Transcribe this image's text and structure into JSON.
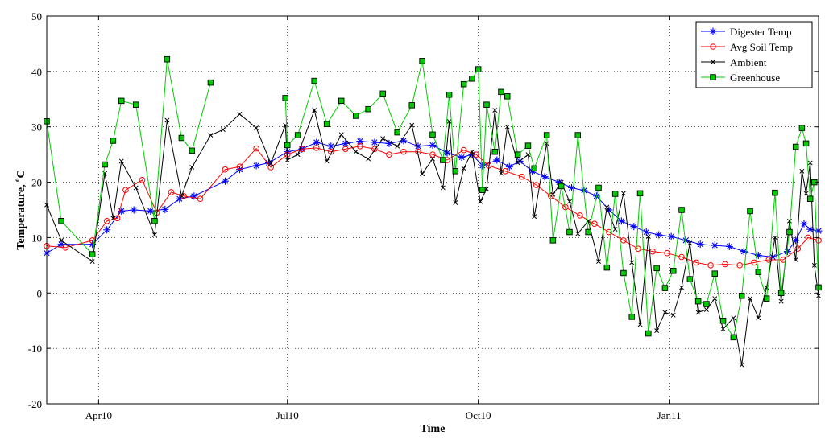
{
  "chart_data": {
    "type": "line",
    "xlabel": "Time",
    "ylabel": "Temperature, °C",
    "ylabel_text": "Temperature, ",
    "ylabel_sup": "o",
    "ylabel_unit": "C",
    "xlim": [
      "2010-03-07",
      "2011-03-14"
    ],
    "ylim": [
      -20,
      50
    ],
    "grid": true,
    "legend_position": "top-right",
    "x_ticks": [
      {
        "date": "2010-04-01",
        "label": "Apr10"
      },
      {
        "date": "2010-07-01",
        "label": "Jul10"
      },
      {
        "date": "2010-10-01",
        "label": "Oct10"
      },
      {
        "date": "2011-01-01",
        "label": "Jan11"
      }
    ],
    "y_ticks": [
      -20,
      -10,
      0,
      10,
      20,
      30,
      40,
      50
    ],
    "series": [
      {
        "name": "Digester Temp",
        "color": "#0000ff",
        "marker": "star",
        "points": [
          [
            "2010-03-07",
            7.2
          ],
          [
            "2010-03-14",
            8.8
          ],
          [
            "2010-03-29",
            8.8
          ],
          [
            "2010-04-05",
            11.4
          ],
          [
            "2010-04-12",
            14.8
          ],
          [
            "2010-04-18",
            15.0
          ],
          [
            "2010-04-26",
            14.8
          ],
          [
            "2010-05-03",
            15.1
          ],
          [
            "2010-05-10",
            17.0
          ],
          [
            "2010-05-17",
            17.5
          ],
          [
            "2010-06-01",
            20.2
          ],
          [
            "2010-06-08",
            22.3
          ],
          [
            "2010-06-16",
            23.0
          ],
          [
            "2010-06-22",
            23.5
          ],
          [
            "2010-07-01",
            25.5
          ],
          [
            "2010-07-08",
            26.0
          ],
          [
            "2010-07-15",
            27.2
          ],
          [
            "2010-07-22",
            26.5
          ],
          [
            "2010-07-29",
            27.0
          ],
          [
            "2010-08-05",
            27.4
          ],
          [
            "2010-08-12",
            27.2
          ],
          [
            "2010-08-19",
            27.0
          ],
          [
            "2010-08-26",
            27.5
          ],
          [
            "2010-09-02",
            26.5
          ],
          [
            "2010-09-09",
            26.7
          ],
          [
            "2010-09-16",
            25.3
          ],
          [
            "2010-09-23",
            24.5
          ],
          [
            "2010-09-28",
            25.0
          ],
          [
            "2010-10-03",
            23.0
          ],
          [
            "2010-10-10",
            24.0
          ],
          [
            "2010-10-16",
            22.8
          ],
          [
            "2010-10-21",
            23.8
          ],
          [
            "2010-10-27",
            22.0
          ],
          [
            "2010-11-02",
            21.0
          ],
          [
            "2010-11-09",
            20.0
          ],
          [
            "2010-11-15",
            19.0
          ],
          [
            "2010-11-21",
            18.5
          ],
          [
            "2010-11-27",
            17.5
          ],
          [
            "2010-12-03",
            15.0
          ],
          [
            "2010-12-09",
            13.0
          ],
          [
            "2010-12-15",
            12.0
          ],
          [
            "2010-12-21",
            11.0
          ],
          [
            "2010-12-27",
            10.5
          ],
          [
            "2011-01-02",
            10.2
          ],
          [
            "2011-01-09",
            9.5
          ],
          [
            "2011-01-16",
            8.8
          ],
          [
            "2011-01-23",
            8.6
          ],
          [
            "2011-01-30",
            8.4
          ],
          [
            "2011-02-06",
            7.5
          ],
          [
            "2011-02-13",
            6.8
          ],
          [
            "2011-02-20",
            6.5
          ],
          [
            "2011-02-27",
            7.5
          ],
          [
            "2011-03-03",
            9.5
          ],
          [
            "2011-03-07",
            12.5
          ],
          [
            "2011-03-10",
            11.5
          ],
          [
            "2011-03-14",
            11.2
          ]
        ]
      },
      {
        "name": "Avg Soil Temp",
        "color": "#ff0000",
        "marker": "circle",
        "points": [
          [
            "2010-03-07",
            8.5
          ],
          [
            "2010-03-16",
            8.2
          ],
          [
            "2010-03-29",
            9.5
          ],
          [
            "2010-04-05",
            13.0
          ],
          [
            "2010-04-10",
            13.5
          ],
          [
            "2010-04-14",
            18.6
          ],
          [
            "2010-04-22",
            20.4
          ],
          [
            "2010-04-29",
            14.5
          ],
          [
            "2010-05-06",
            18.2
          ],
          [
            "2010-05-12",
            17.5
          ],
          [
            "2010-05-20",
            17.0
          ],
          [
            "2010-06-01",
            22.3
          ],
          [
            "2010-06-08",
            22.8
          ],
          [
            "2010-06-16",
            26.1
          ],
          [
            "2010-06-23",
            22.7
          ],
          [
            "2010-07-01",
            25.0
          ],
          [
            "2010-07-08",
            26.0
          ],
          [
            "2010-07-15",
            26.2
          ],
          [
            "2010-07-22",
            25.5
          ],
          [
            "2010-07-29",
            26.0
          ],
          [
            "2010-08-05",
            26.5
          ],
          [
            "2010-08-12",
            26.0
          ],
          [
            "2010-08-19",
            25.0
          ],
          [
            "2010-08-26",
            25.5
          ],
          [
            "2010-09-02",
            25.5
          ],
          [
            "2010-09-09",
            25.0
          ],
          [
            "2010-09-16",
            24.0
          ],
          [
            "2010-09-24",
            25.8
          ],
          [
            "2010-09-30",
            25.0
          ],
          [
            "2010-10-06",
            23.0
          ],
          [
            "2010-10-14",
            22.0
          ],
          [
            "2010-10-22",
            21.0
          ],
          [
            "2010-10-29",
            19.5
          ],
          [
            "2010-11-05",
            17.5
          ],
          [
            "2010-11-12",
            15.5
          ],
          [
            "2010-11-19",
            14.0
          ],
          [
            "2010-11-26",
            12.5
          ],
          [
            "2010-12-03",
            11.0
          ],
          [
            "2010-12-10",
            9.5
          ],
          [
            "2010-12-17",
            8.0
          ],
          [
            "2010-12-24",
            7.5
          ],
          [
            "2010-12-31",
            7.2
          ],
          [
            "2011-01-07",
            6.5
          ],
          [
            "2011-01-14",
            5.5
          ],
          [
            "2011-01-21",
            5.0
          ],
          [
            "2011-01-28",
            5.2
          ],
          [
            "2011-02-04",
            5.0
          ],
          [
            "2011-02-11",
            5.5
          ],
          [
            "2011-02-18",
            6.0
          ],
          [
            "2011-02-25",
            6.0
          ],
          [
            "2011-03-04",
            8.0
          ],
          [
            "2011-03-09",
            10.0
          ],
          [
            "2011-03-14",
            9.5
          ]
        ]
      },
      {
        "name": "Ambient",
        "color": "#000000",
        "marker": "x",
        "points": [
          [
            "2010-03-07",
            15.9
          ],
          [
            "2010-03-14",
            9.5
          ],
          [
            "2010-03-29",
            5.7
          ],
          [
            "2010-04-04",
            21.6
          ],
          [
            "2010-04-08",
            13.5
          ],
          [
            "2010-04-12",
            23.8
          ],
          [
            "2010-04-19",
            19.0
          ],
          [
            "2010-04-28",
            10.5
          ],
          [
            "2010-05-04",
            31.2
          ],
          [
            "2010-05-11",
            17.5
          ],
          [
            "2010-05-16",
            22.7
          ],
          [
            "2010-05-25",
            28.5
          ],
          [
            "2010-05-31",
            29.5
          ],
          [
            "2010-06-08",
            32.3
          ],
          [
            "2010-06-16",
            29.8
          ],
          [
            "2010-06-23",
            23.4
          ],
          [
            "2010-06-30",
            30.3
          ],
          [
            "2010-07-01",
            24.0
          ],
          [
            "2010-07-06",
            25.0
          ],
          [
            "2010-07-14",
            33.0
          ],
          [
            "2010-07-20",
            23.8
          ],
          [
            "2010-07-27",
            28.6
          ],
          [
            "2010-08-03",
            25.5
          ],
          [
            "2010-08-09",
            24.2
          ],
          [
            "2010-08-16",
            27.9
          ],
          [
            "2010-08-23",
            26.5
          ],
          [
            "2010-08-30",
            30.3
          ],
          [
            "2010-09-04",
            21.5
          ],
          [
            "2010-09-09",
            24.2
          ],
          [
            "2010-09-14",
            19.0
          ],
          [
            "2010-09-17",
            31.0
          ],
          [
            "2010-09-20",
            16.3
          ],
          [
            "2010-09-24",
            22.5
          ],
          [
            "2010-09-28",
            25.5
          ],
          [
            "2010-10-02",
            16.5
          ],
          [
            "2010-10-05",
            18.8
          ],
          [
            "2010-10-09",
            33.0
          ],
          [
            "2010-10-12",
            21.6
          ],
          [
            "2010-10-15",
            30.0
          ],
          [
            "2010-10-20",
            23.5
          ],
          [
            "2010-10-25",
            25.0
          ],
          [
            "2010-10-28",
            13.8
          ],
          [
            "2010-11-03",
            27.0
          ],
          [
            "2010-11-06",
            17.8
          ],
          [
            "2010-11-10",
            20.0
          ],
          [
            "2010-11-14",
            16.5
          ],
          [
            "2010-11-18",
            10.7
          ],
          [
            "2010-11-23",
            13.0
          ],
          [
            "2010-11-28",
            5.7
          ],
          [
            "2010-12-02",
            15.5
          ],
          [
            "2010-12-06",
            11.5
          ],
          [
            "2010-12-10",
            18.0
          ],
          [
            "2010-12-14",
            5.5
          ],
          [
            "2010-12-18",
            -5.7
          ],
          [
            "2010-12-22",
            10.2
          ],
          [
            "2010-12-26",
            -6.8
          ],
          [
            "2010-12-30",
            -3.5
          ],
          [
            "2011-01-03",
            -4.0
          ],
          [
            "2011-01-07",
            1.0
          ],
          [
            "2011-01-11",
            9.0
          ],
          [
            "2011-01-15",
            -3.5
          ],
          [
            "2011-01-19",
            -3.0
          ],
          [
            "2011-01-23",
            -1.0
          ],
          [
            "2011-01-27",
            -6.5
          ],
          [
            "2011-02-01",
            -4.5
          ],
          [
            "2011-02-05",
            -13.0
          ],
          [
            "2011-02-09",
            -1.0
          ],
          [
            "2011-02-13",
            -4.5
          ],
          [
            "2011-02-17",
            1.0
          ],
          [
            "2011-02-21",
            10.0
          ],
          [
            "2011-02-24",
            -1.5
          ],
          [
            "2011-02-28",
            13.0
          ],
          [
            "2011-03-03",
            6.0
          ],
          [
            "2011-03-06",
            22.0
          ],
          [
            "2011-03-08",
            18.0
          ],
          [
            "2011-03-10",
            23.5
          ],
          [
            "2011-03-12",
            5.0
          ],
          [
            "2011-03-14",
            -0.5
          ]
        ]
      },
      {
        "name": "Greenhouse",
        "color": "#00cc00",
        "marker": "square",
        "points": [
          [
            "2010-03-07",
            31.0
          ],
          [
            "2010-03-14",
            13.0
          ],
          [
            "2010-03-29",
            7.0
          ],
          [
            "2010-04-04",
            23.2
          ],
          [
            "2010-04-08",
            27.5
          ],
          [
            "2010-04-12",
            34.7
          ],
          [
            "2010-04-19",
            34.0
          ],
          [
            "2010-04-28",
            13.0
          ],
          [
            "2010-05-04",
            42.2
          ],
          [
            "2010-05-11",
            28.0
          ],
          [
            "2010-05-16",
            25.7
          ],
          [
            "2010-05-25",
            38.0
          ],
          null,
          [
            "2010-06-30",
            35.2
          ],
          [
            "2010-07-01",
            26.7
          ],
          [
            "2010-07-06",
            28.5
          ],
          [
            "2010-07-14",
            38.3
          ],
          [
            "2010-07-20",
            30.5
          ],
          [
            "2010-07-27",
            34.7
          ],
          [
            "2010-08-03",
            32.0
          ],
          [
            "2010-08-09",
            33.2
          ],
          [
            "2010-08-16",
            36.0
          ],
          [
            "2010-08-23",
            29.0
          ],
          [
            "2010-08-30",
            33.9
          ],
          [
            "2010-09-04",
            41.9
          ],
          [
            "2010-09-09",
            28.6
          ],
          [
            "2010-09-14",
            24.0
          ],
          [
            "2010-09-17",
            35.8
          ],
          [
            "2010-09-20",
            22.0
          ],
          [
            "2010-09-24",
            37.7
          ],
          [
            "2010-09-28",
            38.7
          ],
          [
            "2010-10-01",
            40.4
          ],
          [
            "2010-10-03",
            18.6
          ],
          [
            "2010-10-05",
            34.0
          ],
          [
            "2010-10-09",
            25.5
          ],
          [
            "2010-10-12",
            36.3
          ],
          [
            "2010-10-15",
            35.5
          ],
          [
            "2010-10-20",
            25.0
          ],
          [
            "2010-10-25",
            26.6
          ],
          [
            "2010-10-28",
            22.5
          ],
          [
            "2010-11-03",
            28.5
          ],
          [
            "2010-11-06",
            9.5
          ],
          [
            "2010-11-10",
            19.3
          ],
          [
            "2010-11-14",
            11.0
          ],
          [
            "2010-11-18",
            28.5
          ],
          [
            "2010-11-23",
            11.0
          ],
          [
            "2010-11-28",
            19.0
          ],
          [
            "2010-12-02",
            4.6
          ],
          [
            "2010-12-06",
            17.9
          ],
          [
            "2010-12-10",
            3.6
          ],
          [
            "2010-12-14",
            -4.3
          ],
          [
            "2010-12-18",
            18.0
          ],
          [
            "2010-12-22",
            -7.3
          ],
          [
            "2010-12-26",
            4.5
          ],
          [
            "2010-12-30",
            0.9
          ],
          [
            "2011-01-03",
            4.0
          ],
          [
            "2011-01-07",
            15.0
          ],
          [
            "2011-01-11",
            2.5
          ],
          [
            "2011-01-15",
            -1.5
          ],
          [
            "2011-01-19",
            -2.0
          ],
          [
            "2011-01-23",
            3.5
          ],
          [
            "2011-01-27",
            -5.0
          ],
          [
            "2011-02-01",
            -8.0
          ],
          [
            "2011-02-05",
            -0.5
          ],
          [
            "2011-02-09",
            14.8
          ],
          [
            "2011-02-13",
            3.8
          ],
          [
            "2011-02-17",
            -1.0
          ],
          [
            "2011-02-21",
            18.1
          ],
          [
            "2011-02-24",
            0.0
          ],
          [
            "2011-02-28",
            11.0
          ],
          [
            "2011-03-03",
            26.4
          ],
          [
            "2011-03-06",
            29.8
          ],
          [
            "2011-03-08",
            27.0
          ],
          [
            "2011-03-10",
            17.0
          ],
          [
            "2011-03-12",
            20.0
          ],
          [
            "2011-03-14",
            1.0
          ]
        ]
      }
    ]
  }
}
